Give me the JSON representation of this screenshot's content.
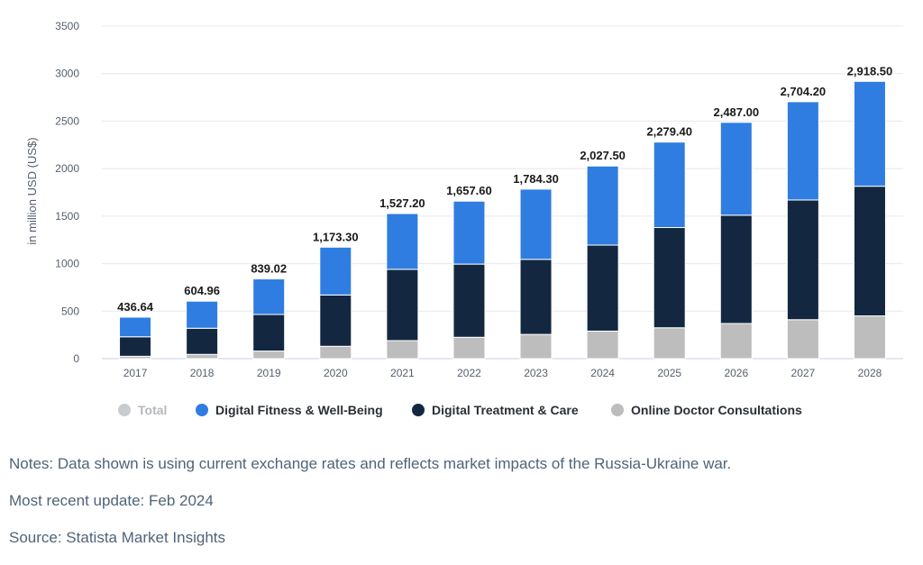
{
  "chart_data": {
    "type": "bar",
    "stacked": true,
    "ylabel": "in million USD (US$)",
    "ylim": [
      0,
      3500
    ],
    "yticks": [
      0,
      500,
      1000,
      1500,
      2000,
      2500,
      3000,
      3500
    ],
    "grid": true,
    "legend_position": "bottom",
    "categories": [
      "2017",
      "2018",
      "2019",
      "2020",
      "2021",
      "2022",
      "2023",
      "2024",
      "2025",
      "2026",
      "2027",
      "2028"
    ],
    "totals": [
      436.64,
      604.96,
      839.02,
      1173.3,
      1527.2,
      1657.6,
      1784.3,
      2027.5,
      2279.4,
      2487.0,
      2704.2,
      2918.5
    ],
    "total_labels": [
      "436.64",
      "604.96",
      "839.02",
      "1,173.30",
      "1,527.20",
      "1,657.60",
      "1,784.30",
      "2,027.50",
      "2,279.40",
      "2,487.00",
      "2,704.20",
      "2,918.50"
    ],
    "series": [
      {
        "name": "Online Doctor Consultations",
        "color": "#bdbdbd",
        "values": [
          25,
          45,
          80,
          130,
          190,
          225,
          255,
          290,
          325,
          370,
          410,
          450
        ]
      },
      {
        "name": "Digital Treatment & Care",
        "color": "#132840",
        "values": [
          205,
          275,
          385,
          540,
          750,
          770,
          790,
          905,
          1055,
          1140,
          1260,
          1365
        ]
      },
      {
        "name": "Digital Fitness & Well-Being",
        "color": "#2f7de1",
        "values": [
          206.64,
          284.96,
          374.02,
          503.3,
          587.2,
          662.6,
          739.3,
          832.5,
          899.4,
          977.0,
          1034.2,
          1103.5
        ]
      }
    ],
    "legend": [
      {
        "name": "Total",
        "color": "#c8cbcf",
        "muted": true
      },
      {
        "name": "Digital Fitness & Well-Being",
        "color": "#2f7de1",
        "muted": false
      },
      {
        "name": "Digital Treatment & Care",
        "color": "#132840",
        "muted": false
      },
      {
        "name": "Online Doctor Consultations",
        "color": "#bdbdbd",
        "muted": false
      }
    ]
  },
  "notes": {
    "notes_text": "Notes: Data shown is using current exchange rates and reflects market impacts of the Russia-Ukraine war.",
    "update_text": "Most recent update: Feb 2024",
    "source_text": "Source: Statista Market Insights"
  }
}
